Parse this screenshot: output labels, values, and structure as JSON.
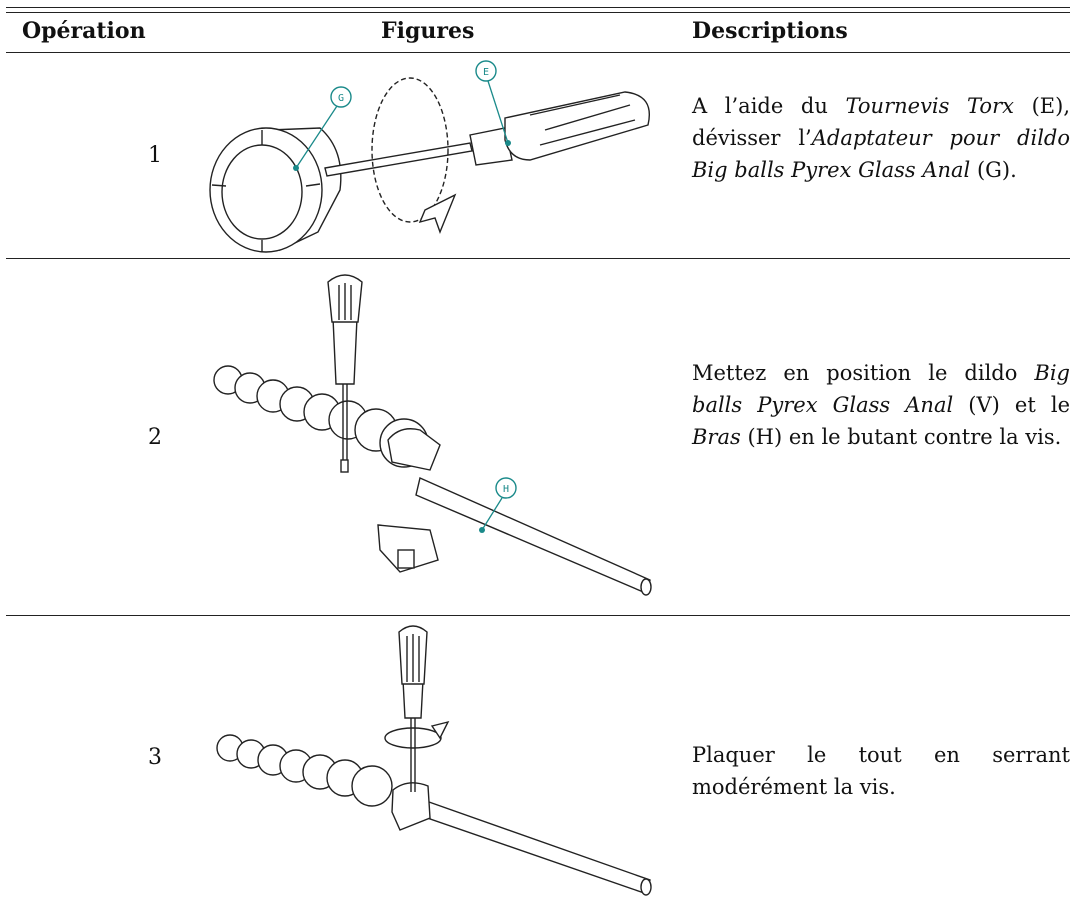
{
  "table": {
    "headers": [
      "Opération",
      "Figures",
      "Descriptions"
    ],
    "rows": [
      {
        "operation": "1",
        "figure_labels": [
          "G",
          "E"
        ],
        "description": [
          {
            "text": "A l’aide du "
          },
          {
            "text": "Tournevis Torx",
            "italic": true
          },
          {
            "text": " (E), dévisser l’"
          },
          {
            "text": "Adaptateur pour dildo Big balls Pyrex Glass Anal",
            "italic": true
          },
          {
            "text": " (G)."
          }
        ]
      },
      {
        "operation": "2",
        "figure_labels": [
          "H"
        ],
        "description": [
          {
            "text": "Mettez en position le dildo "
          },
          {
            "text": "Big balls Pyrex Glass Anal",
            "italic": true
          },
          {
            "text": " (V) et le "
          },
          {
            "text": "Bras",
            "italic": true
          },
          {
            "text": " (H) en le butant contre la vis."
          }
        ]
      },
      {
        "operation": "3",
        "description": [
          {
            "text": "Plaquer le tout en serrant modérément la vis."
          }
        ]
      }
    ]
  }
}
